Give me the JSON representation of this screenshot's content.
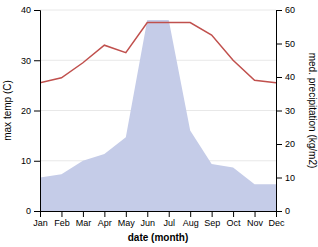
{
  "chart_data": {
    "type": "line",
    "xlabel": "date (month)",
    "ylabel": "max temp (C)",
    "y2label": "med. precipitation (kg/m2)",
    "categories": [
      "Jan",
      "Feb",
      "Mar",
      "Apr",
      "May",
      "Jun",
      "Jul",
      "Aug",
      "Sep",
      "Oct",
      "Nov",
      "Dec"
    ],
    "series": [
      {
        "type": "area",
        "axis": "y2",
        "color": "#c5cce8",
        "values": [
          10,
          11,
          15,
          17,
          22,
          57,
          57,
          24,
          14,
          13,
          8,
          8
        ]
      },
      {
        "type": "line",
        "color": "#c0504d",
        "values": [
          25.5,
          26.5,
          29.5,
          33.0,
          31.5,
          37.5,
          37.5,
          37.5,
          35.0,
          30.0,
          26.0,
          25.5
        ]
      }
    ],
    "ylim": [
      0,
      40
    ],
    "yticks": [
      0,
      10,
      20,
      30,
      40
    ],
    "y2lim": [
      0,
      60
    ],
    "y2ticks": [
      0,
      10,
      20,
      30,
      40,
      50,
      60
    ],
    "grid": true
  }
}
